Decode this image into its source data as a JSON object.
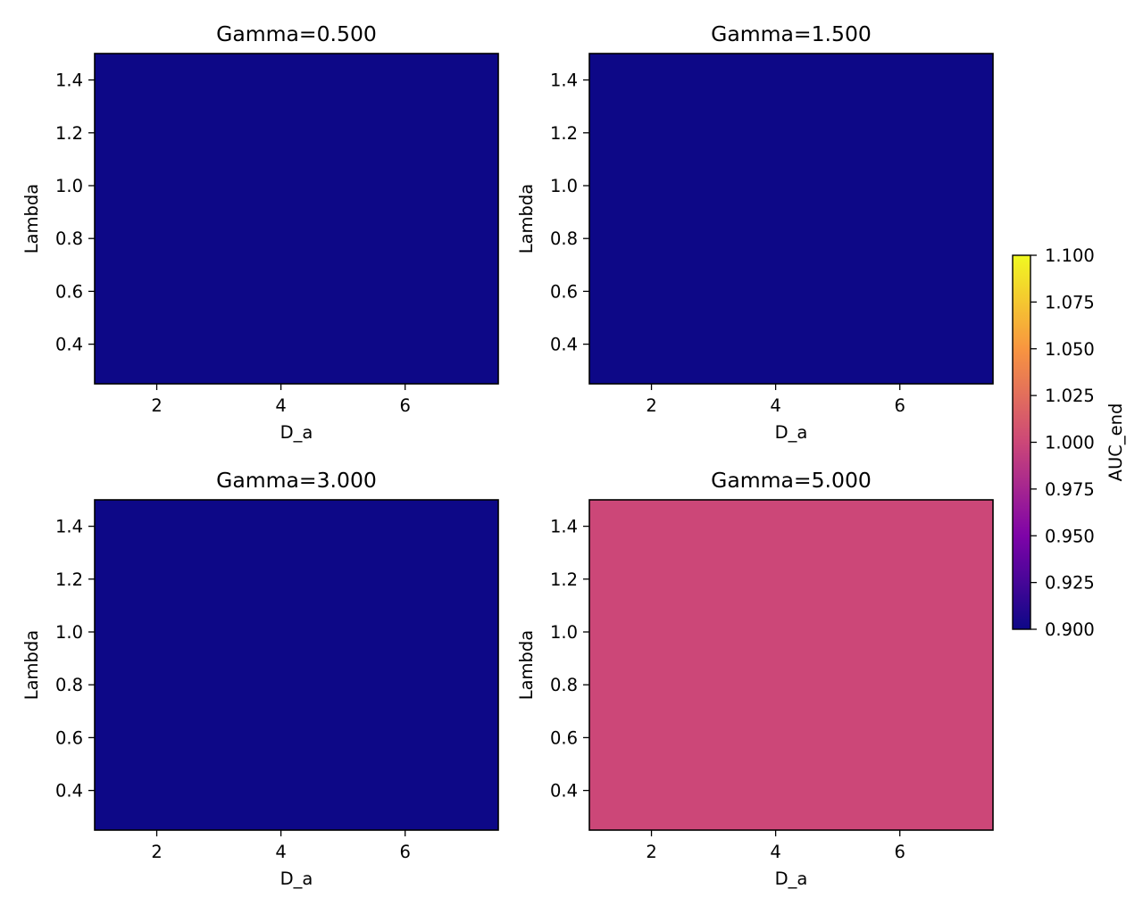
{
  "chart_data": {
    "type": "heatmap",
    "colormap": "plasma",
    "colorbar": {
      "label": "AUC_end",
      "range": [
        0.9,
        1.1
      ],
      "ticks": [
        0.9,
        0.925,
        0.95,
        0.975,
        1.0,
        1.025,
        1.05,
        1.075,
        1.1
      ],
      "tick_labels": [
        "0.900",
        "0.925",
        "0.950",
        "0.975",
        "1.000",
        "1.025",
        "1.050",
        "1.075",
        "1.100"
      ],
      "colors": [
        "#0d0887",
        "#7e03a8",
        "#cc4778",
        "#f89540",
        "#f0f921"
      ]
    },
    "panels": [
      {
        "title": "Gamma=0.500",
        "xlabel": "D_a",
        "ylabel": "Lambda",
        "xlim": [
          1.0,
          7.5
        ],
        "ylim": [
          0.25,
          1.5
        ],
        "xticks": [
          2,
          4,
          6
        ],
        "yticks": [
          0.4,
          0.6,
          0.8,
          1.0,
          1.2,
          1.4
        ],
        "ytick_labels": [
          "0.4",
          "0.6",
          "0.8",
          "1.0",
          "1.2",
          "1.4"
        ],
        "value": 0.9
      },
      {
        "title": "Gamma=1.500",
        "xlabel": "D_a",
        "ylabel": "Lambda",
        "xlim": [
          1.0,
          7.5
        ],
        "ylim": [
          0.25,
          1.5
        ],
        "xticks": [
          2,
          4,
          6
        ],
        "yticks": [
          0.4,
          0.6,
          0.8,
          1.0,
          1.2,
          1.4
        ],
        "ytick_labels": [
          "0.4",
          "0.6",
          "0.8",
          "1.0",
          "1.2",
          "1.4"
        ],
        "value": 0.9
      },
      {
        "title": "Gamma=3.000",
        "xlabel": "D_a",
        "ylabel": "Lambda",
        "xlim": [
          1.0,
          7.5
        ],
        "ylim": [
          0.25,
          1.5
        ],
        "xticks": [
          2,
          4,
          6
        ],
        "yticks": [
          0.4,
          0.6,
          0.8,
          1.0,
          1.2,
          1.4
        ],
        "ytick_labels": [
          "0.4",
          "0.6",
          "0.8",
          "1.0",
          "1.2",
          "1.4"
        ],
        "value": 0.9
      },
      {
        "title": "Gamma=5.000",
        "xlabel": "D_a",
        "ylabel": "Lambda",
        "xlim": [
          1.0,
          7.5
        ],
        "ylim": [
          0.25,
          1.5
        ],
        "xticks": [
          2,
          4,
          6
        ],
        "yticks": [
          0.4,
          0.6,
          0.8,
          1.0,
          1.2,
          1.4
        ],
        "ytick_labels": [
          "0.4",
          "0.6",
          "0.8",
          "1.0",
          "1.2",
          "1.4"
        ],
        "value": 1.0
      }
    ]
  }
}
